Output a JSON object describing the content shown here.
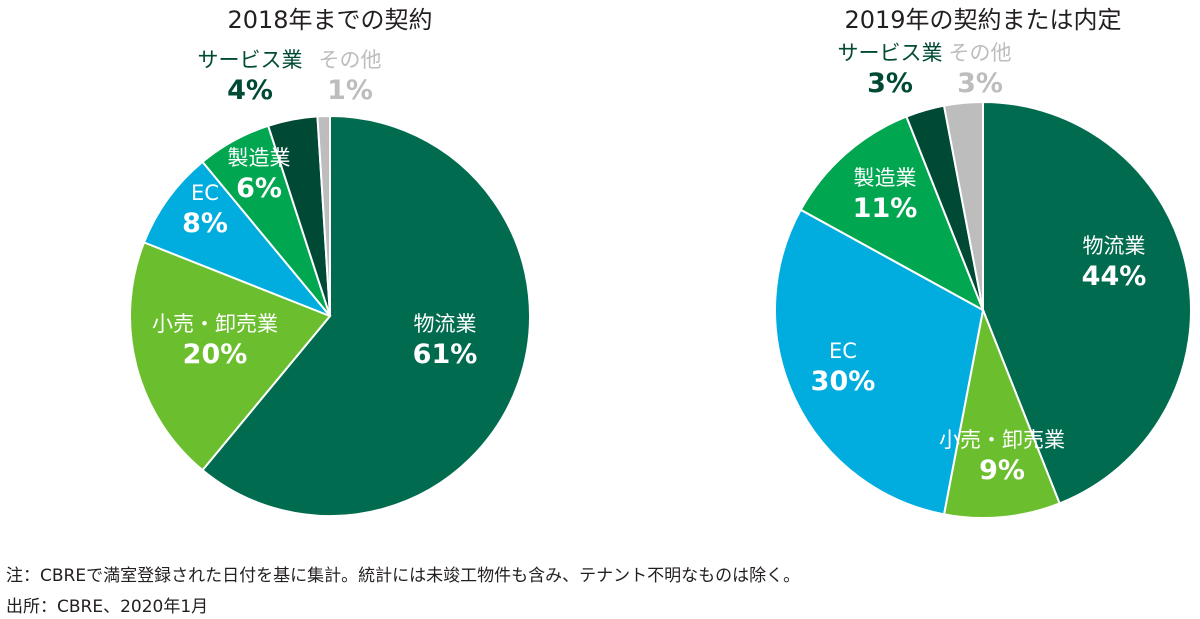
{
  "colors": {
    "物流業": "#006b4e",
    "小売・卸売業": "#6bbf2e",
    "EC": "#00adde",
    "製造業": "#00a650",
    "サービス業": "#004a35",
    "その他": "#bdbdbd"
  },
  "chart_data": [
    {
      "type": "pie",
      "title": "2018年までの契約",
      "slices": [
        {
          "name": "物流業",
          "value": 61,
          "label": "61%"
        },
        {
          "name": "小売・卸売業",
          "value": 20,
          "label": "20%"
        },
        {
          "name": "EC",
          "value": 8,
          "label": "8%"
        },
        {
          "name": "製造業",
          "value": 6,
          "label": "6%"
        },
        {
          "name": "サービス業",
          "value": 4,
          "label": "4%"
        },
        {
          "name": "その他",
          "value": 1,
          "label": "1%"
        }
      ]
    },
    {
      "type": "pie",
      "title": "2019年の契約または内定",
      "slices": [
        {
          "name": "物流業",
          "value": 44,
          "label": "44%"
        },
        {
          "name": "小売・卸売業",
          "value": 9,
          "label": "9%"
        },
        {
          "name": "EC",
          "value": 30,
          "label": "30%"
        },
        {
          "name": "製造業",
          "value": 11,
          "label": "11%"
        },
        {
          "name": "サービス業",
          "value": 3,
          "label": "3%"
        },
        {
          "name": "その他",
          "value": 3,
          "label": "3%"
        }
      ]
    }
  ],
  "footnotes": {
    "note": "注：CBREで満室登録された日付を基に集計。統計には未竣工物件も含み、テナント不明なものは除く。",
    "source": "出所：CBRE、2020年1月"
  }
}
